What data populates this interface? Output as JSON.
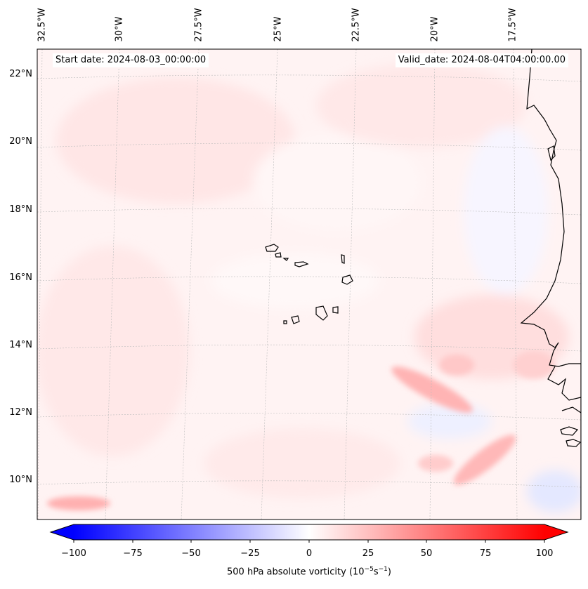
{
  "map": {
    "start_label": "Start date: 2024-08-03_00:00:00",
    "valid_label": "Valid_date: 2024-08-04T04:00:00.00",
    "longitude_labels": [
      "32.5°W",
      "30°W",
      "27.5°W",
      "25°W",
      "22.5°W",
      "20°W",
      "17.5°W"
    ],
    "latitude_labels": [
      "22°N",
      "20°N",
      "18°N",
      "16°N",
      "14°N",
      "12°N",
      "10°N"
    ],
    "colorbar": {
      "ticks": [
        "−100",
        "−75",
        "−50",
        "−25",
        "0",
        "25",
        "50",
        "75",
        "100"
      ],
      "title": "500 hPa absolute vorticity (10",
      "title_sup1": "−5",
      "title_mid": "s",
      "title_sup2": "−1",
      "title_end": ")",
      "min": -100,
      "max": 100,
      "negative_color": "#0000ff",
      "positive_color": "#ff0000"
    }
  }
}
